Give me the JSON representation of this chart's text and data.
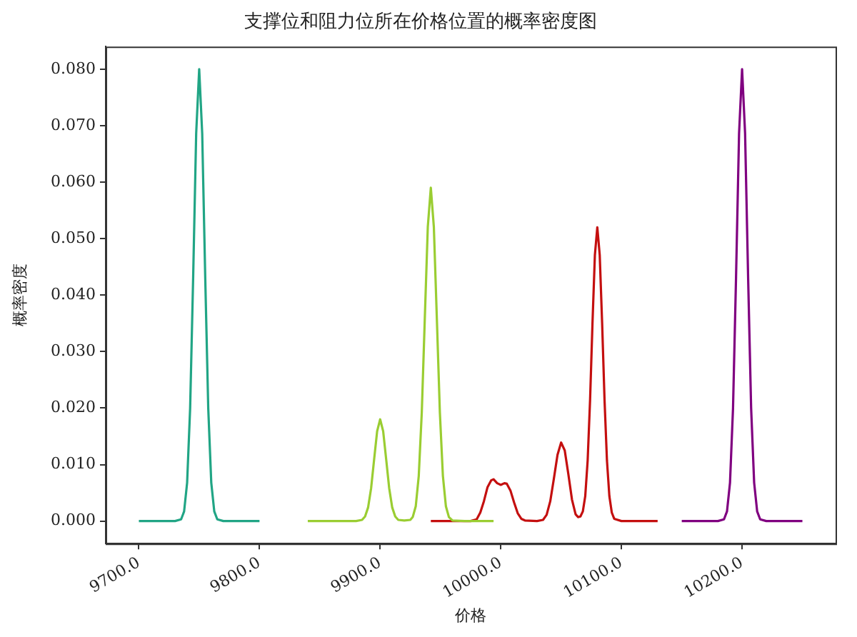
{
  "chart_data": {
    "type": "line",
    "title": "支撑位和阻力位所在价格位置的概率密度图",
    "xlabel": "价格",
    "ylabel": "概率密度",
    "xlim": [
      9672.5,
      10277.5
    ],
    "ylim": [
      -0.004,
      0.084
    ],
    "xticks": [
      {
        "value": 9700,
        "label": "9700.0"
      },
      {
        "value": 9800,
        "label": "9800.0"
      },
      {
        "value": 9900,
        "label": "9900.0"
      },
      {
        "value": 10000,
        "label": "10000.0"
      },
      {
        "value": 10100,
        "label": "10100.0"
      },
      {
        "value": 10200,
        "label": "10200.0"
      }
    ],
    "yticks": [
      {
        "value": 0,
        "label": "0.000"
      },
      {
        "value": 0.01,
        "label": "0.010"
      },
      {
        "value": 0.02,
        "label": "0.020"
      },
      {
        "value": 0.03,
        "label": "0.030"
      },
      {
        "value": 0.04,
        "label": "0.040"
      },
      {
        "value": 0.05,
        "label": "0.050"
      },
      {
        "value": 0.06,
        "label": "0.060"
      },
      {
        "value": 0.07,
        "label": "0.070"
      },
      {
        "value": 0.08,
        "label": "0.080"
      }
    ],
    "grid": false,
    "legend": false,
    "series": [
      {
        "color": "#21a585",
        "x": [
          9700,
          9720,
          9730,
          9735,
          9737.5,
          9740,
          9742.5,
          9745,
          9747.5,
          9750,
          9752.5,
          9755,
          9757.5,
          9760,
          9762.5,
          9765,
          9770,
          9780,
          9800
        ],
        "values": [
          0,
          0,
          0,
          0.0003,
          0.0017,
          0.0068,
          0.02,
          0.0432,
          0.0686,
          0.08,
          0.0686,
          0.0432,
          0.02,
          0.0068,
          0.0017,
          0.0003,
          0,
          0,
          0
        ]
      },
      {
        "color": "#9acd32",
        "x": [
          9840,
          9870,
          9880,
          9885,
          9887.5,
          9890,
          9892.5,
          9895,
          9897.5,
          9900,
          9902.5,
          9905,
          9907.5,
          9910,
          9912.5,
          9915,
          9920,
          9925,
          9927,
          9929.5,
          9932,
          9934.5,
          9937,
          9939.5,
          9942,
          9944.5,
          9947,
          9949.5,
          9952,
          9954.5,
          9957,
          9960,
          9970,
          9994
        ],
        "values": [
          0,
          0,
          0,
          0.0002,
          0.0008,
          0.0024,
          0.0058,
          0.0109,
          0.0159,
          0.018,
          0.0159,
          0.0109,
          0.0058,
          0.0024,
          0.0008,
          0.0002,
          0.0001,
          0.0002,
          0.0007,
          0.0026,
          0.008,
          0.0192,
          0.0358,
          0.0521,
          0.059,
          0.0521,
          0.0358,
          0.0192,
          0.008,
          0.0026,
          0.0007,
          0.0001,
          0,
          0
        ]
      },
      {
        "color": "#c40f0f",
        "x": [
          9942,
          9975,
          9980,
          9983,
          9986,
          9989,
          9992,
          9994,
          9997,
          10000,
          10003,
          10005,
          10008,
          10011,
          10014,
          10017,
          10020,
          10030,
          10035,
          10038,
          10041,
          10044,
          10047,
          10050,
          10053,
          10056,
          10059,
          10062,
          10064,
          10066,
          10068,
          10070,
          10072,
          10074,
          10076,
          10078,
          10080,
          10082,
          10084,
          10086,
          10088,
          10090,
          10092,
          10094,
          10100,
          10130
        ],
        "values": [
          0,
          0,
          0.0003,
          0.0015,
          0.0035,
          0.006,
          0.0072,
          0.0074,
          0.0067,
          0.0064,
          0.0067,
          0.0066,
          0.0054,
          0.0033,
          0.0014,
          0.0004,
          0.0001,
          0,
          0.0002,
          0.0011,
          0.0035,
          0.0075,
          0.0117,
          0.0139,
          0.0125,
          0.0083,
          0.0038,
          0.0012,
          0.0007,
          0.0008,
          0.0017,
          0.0044,
          0.0107,
          0.0214,
          0.035,
          0.0471,
          0.052,
          0.0471,
          0.035,
          0.0214,
          0.0107,
          0.0044,
          0.0015,
          0.0004,
          0,
          0
        ]
      },
      {
        "color": "#800080",
        "x": [
          10150,
          10170,
          10180,
          10185,
          10187.5,
          10190,
          10192.5,
          10195,
          10197.5,
          10200,
          10202.5,
          10205,
          10207.5,
          10210,
          10212.5,
          10215,
          10220,
          10230,
          10250
        ],
        "values": [
          0,
          0,
          0,
          0.0003,
          0.0017,
          0.0068,
          0.02,
          0.0432,
          0.0686,
          0.08,
          0.0686,
          0.0432,
          0.02,
          0.0068,
          0.0017,
          0.0003,
          0,
          0,
          0
        ]
      }
    ]
  }
}
